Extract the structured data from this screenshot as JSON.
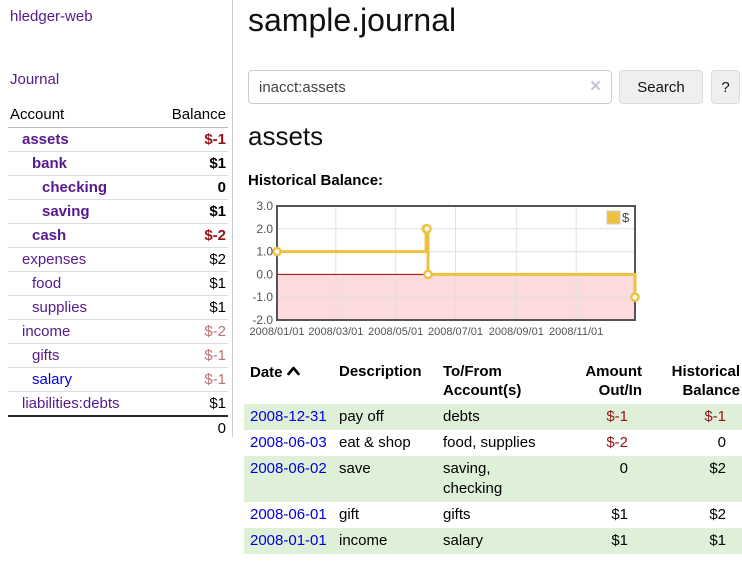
{
  "sidebar": {
    "brand": "hledger-web",
    "nav_journal": "Journal",
    "accounts_table": {
      "headers": {
        "account": "Account",
        "balance": "Balance"
      },
      "rows": [
        {
          "account": "assets",
          "depth": 1,
          "bold": true,
          "link_style": "visited",
          "balance": "$-1",
          "balance_style": "negative-strong"
        },
        {
          "account": "bank",
          "depth": 2,
          "bold": true,
          "link_style": "visited",
          "balance": "$1",
          "balance_style": "normal"
        },
        {
          "account": "checking",
          "depth": 3,
          "bold": true,
          "link_style": "visited",
          "balance": "0",
          "balance_style": "normal"
        },
        {
          "account": "saving",
          "depth": 3,
          "bold": true,
          "link_style": "visited",
          "balance": "$1",
          "balance_style": "normal"
        },
        {
          "account": "cash",
          "depth": 2,
          "bold": true,
          "link_style": "visited",
          "balance": "$-2",
          "balance_style": "negative-strong"
        },
        {
          "account": "expenses",
          "depth": 1,
          "bold": false,
          "link_style": "visited",
          "balance": "$2",
          "balance_style": "normal"
        },
        {
          "account": "food",
          "depth": 2,
          "bold": false,
          "link_style": "visited",
          "balance": "$1",
          "balance_style": "normal"
        },
        {
          "account": "supplies",
          "depth": 2,
          "bold": false,
          "link_style": "visited",
          "balance": "$1",
          "balance_style": "normal"
        },
        {
          "account": "income",
          "depth": 1,
          "bold": false,
          "link_style": "visited",
          "balance": "$-2",
          "balance_style": "negative-muted"
        },
        {
          "account": "gifts",
          "depth": 2,
          "bold": false,
          "link_style": "visited",
          "balance": "$-1",
          "balance_style": "negative-muted"
        },
        {
          "account": "salary",
          "depth": 2,
          "bold": false,
          "link_style": "unvisited",
          "balance": "$-1",
          "balance_style": "negative-muted"
        },
        {
          "account": "liabilities:debts",
          "depth": 1,
          "bold": false,
          "link_style": "visited",
          "balance": "$1",
          "balance_style": "normal"
        }
      ],
      "total": "0"
    }
  },
  "main": {
    "title": "sample.journal",
    "search": {
      "value": "inacct:assets",
      "clear_icon": "×",
      "search_button": "Search",
      "help_button": "?"
    },
    "section_heading": "assets",
    "chart_label": "Historical Balance:"
  },
  "chart_data": {
    "type": "line",
    "style": "steps",
    "title": "Historical Balance",
    "series": [
      {
        "name": "$",
        "color": "#edc240",
        "points": [
          [
            "2008-01-01",
            1
          ],
          [
            "2008-06-01",
            2
          ],
          [
            "2008-06-02",
            2
          ],
          [
            "2008-06-03",
            0
          ],
          [
            "2008-12-31",
            -1
          ]
        ]
      }
    ],
    "xlim": [
      "2008-01-01",
      "2008-12-31"
    ],
    "ylim": [
      -2,
      3
    ],
    "y_ticks": [
      3.0,
      2.0,
      1.0,
      0.0,
      -1.0,
      -2.0
    ],
    "x_ticks": [
      "2008/01/01",
      "2008/03/01",
      "2008/05/01",
      "2008/07/01",
      "2008/09/01",
      "2008/11/01"
    ],
    "grid": true,
    "legend_position": "top-right",
    "legend_label": "$",
    "negative_region_color": "#fbdbdb",
    "zero_line_color": "#a40000"
  },
  "register": {
    "headers": {
      "date": "Date",
      "description": "Description",
      "accounts": "To/From Account(s)",
      "amount": "Amount Out/In",
      "historical": "Historical Balance"
    },
    "rows": [
      {
        "date": "2008-12-31",
        "description": "pay off",
        "accounts": "debts",
        "amount": "$-1",
        "historical": "$-1"
      },
      {
        "date": "2008-06-03",
        "description": "eat & shop",
        "accounts": "food, supplies",
        "amount": "$-2",
        "historical": "0"
      },
      {
        "date": "2008-06-02",
        "description": "save",
        "accounts": "saving, checking",
        "amount": "0",
        "historical": "$2"
      },
      {
        "date": "2008-06-01",
        "description": "gift",
        "accounts": "gifts",
        "amount": "$1",
        "historical": "$2"
      },
      {
        "date": "2008-01-01",
        "description": "income",
        "accounts": "salary",
        "amount": "$1",
        "historical": "$1"
      }
    ]
  }
}
